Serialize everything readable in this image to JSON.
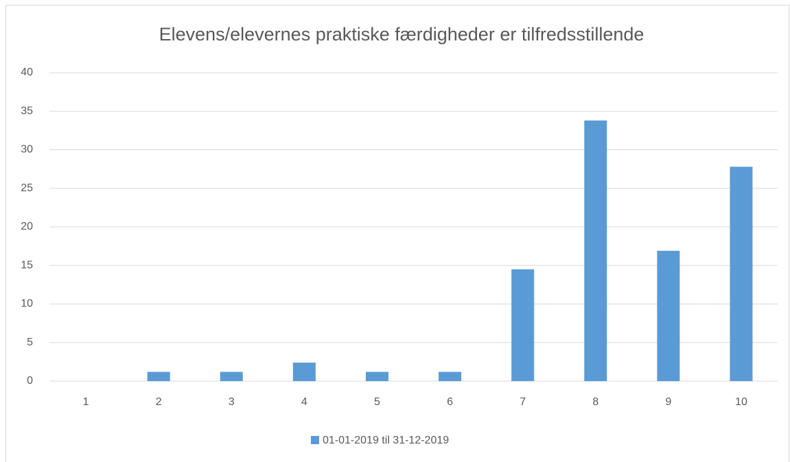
{
  "chart_data": {
    "type": "bar",
    "title": "Elevens/elevernes praktiske færdigheder er tilfredsstillende",
    "categories": [
      "1",
      "2",
      "3",
      "4",
      "5",
      "6",
      "7",
      "8",
      "9",
      "10"
    ],
    "series": [
      {
        "name": "01-01-2019 til 31-12-2019",
        "color": "#5b9bd5",
        "values": [
          0,
          1.2,
          1.2,
          2.4,
          1.2,
          1.2,
          14.5,
          33.8,
          16.9,
          27.8
        ]
      }
    ],
    "ylim": [
      0,
      40
    ],
    "yticks": [
      0,
      5,
      10,
      15,
      20,
      25,
      30,
      35,
      40
    ],
    "grid": true,
    "legend": "bottom"
  }
}
